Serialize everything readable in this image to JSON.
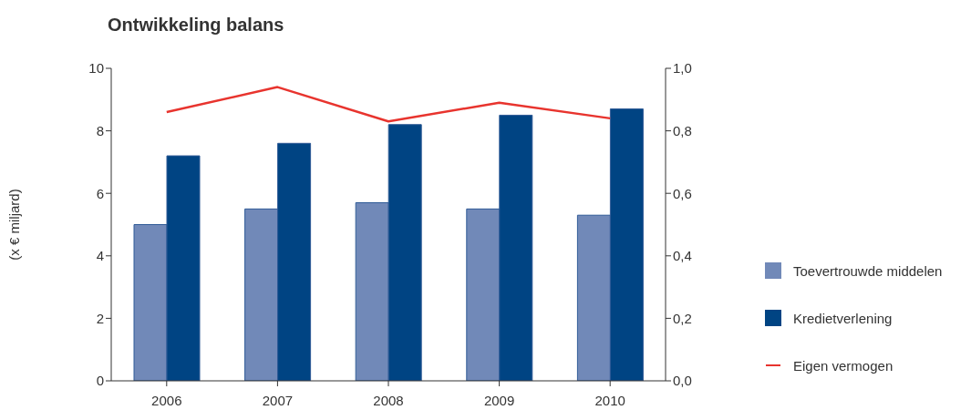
{
  "chart_data": {
    "type": "bar",
    "title": "Ontwikkeling balans",
    "ylabel": "(x € miljard)",
    "categories": [
      "2006",
      "2007",
      "2008",
      "2009",
      "2010"
    ],
    "series": [
      {
        "name": "Toevertrouwde middelen",
        "color": "#7189b8",
        "values": [
          5.0,
          5.5,
          5.7,
          5.5,
          5.3
        ]
      },
      {
        "name": "Kredietverlening",
        "color": "#004483",
        "values": [
          7.2,
          7.6,
          8.2,
          8.5,
          8.7
        ]
      },
      {
        "name": "Eigen vermogen",
        "type": "line",
        "axis": "y2",
        "color": "#e8342e",
        "values": [
          0.86,
          0.94,
          0.83,
          0.89,
          0.84
        ]
      }
    ],
    "ylim": [
      0,
      10
    ],
    "yticks": [
      0,
      2,
      4,
      6,
      8,
      10
    ],
    "y2lim": [
      0,
      1
    ],
    "y2ticks": [
      {
        "value": 0,
        "label": "0,0"
      },
      {
        "value": 0.2,
        "label": "0,2"
      },
      {
        "value": 0.4,
        "label": "0,4"
      },
      {
        "value": 0.6,
        "label": "0,6"
      },
      {
        "value": 0.8,
        "label": "0,8"
      },
      {
        "value": 1,
        "label": "1,0"
      }
    ],
    "grid": false,
    "legend": "right",
    "marker": "none",
    "line_style": "solid"
  }
}
